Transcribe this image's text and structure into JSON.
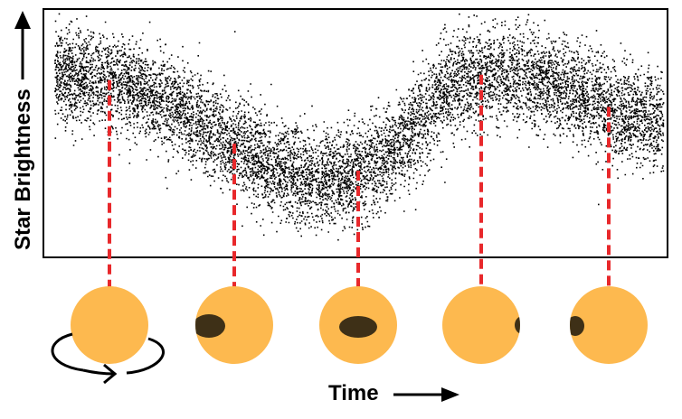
{
  "ylabel": "Star Brightness",
  "xlabel": "Time",
  "colors": {
    "star": "#fdb94f",
    "spot": "#3e3017",
    "marker": "#e8282b",
    "dots": "#000000",
    "frame": "#000000"
  },
  "brightness_curve": {
    "description_of_trend": "high, slight dip, minimum at middle, recovery, high, slight dip",
    "samples": [
      0.74,
      0.73,
      0.7,
      0.63,
      0.55,
      0.46,
      0.38,
      0.33,
      0.32,
      0.38,
      0.52,
      0.68,
      0.74,
      0.73,
      0.7,
      0.63,
      0.58,
      0.55
    ]
  },
  "phases": [
    {
      "name": "phase-1",
      "spot_visible": false,
      "rotation_arrow": true
    },
    {
      "name": "phase-2",
      "spot_visible": true,
      "spot_position": "left-edge"
    },
    {
      "name": "phase-3",
      "spot_visible": true,
      "spot_position": "center"
    },
    {
      "name": "phase-4",
      "spot_visible": true,
      "spot_position": "right-edge"
    },
    {
      "name": "phase-5",
      "spot_visible": true,
      "spot_position": "left-edge"
    }
  ]
}
